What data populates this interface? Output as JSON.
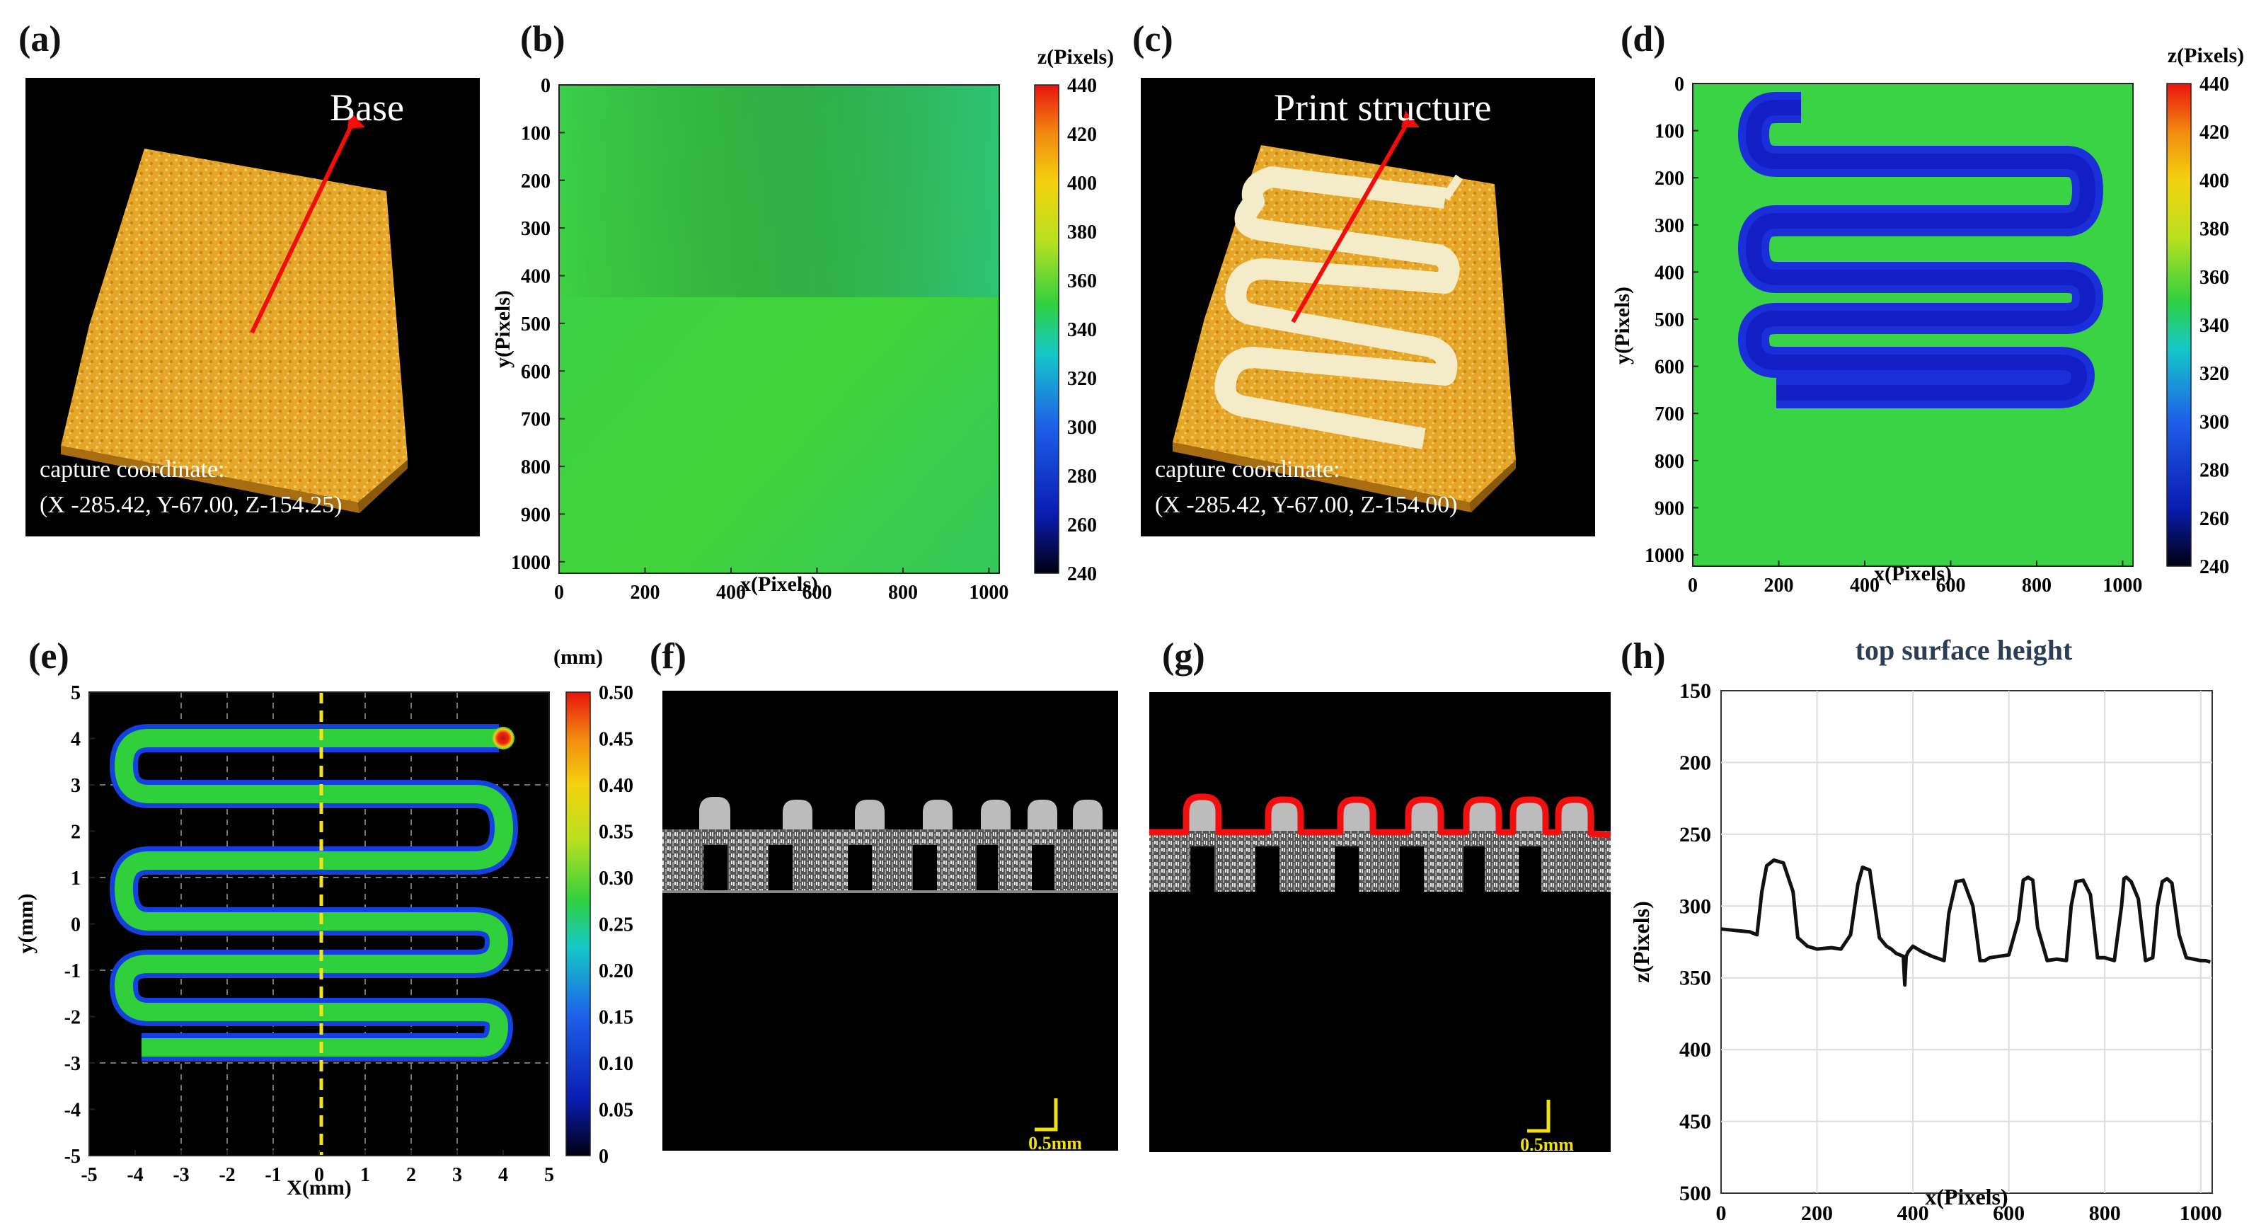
{
  "panel_labels": [
    "(a)",
    "(b)",
    "(c)",
    "(d)",
    "(e)",
    "(f)",
    "(g)",
    "(h)"
  ],
  "panel_a": {
    "arrow_label": "Base",
    "coord_title": "capture coordinate:",
    "coord_value": "(X -285.42, Y-67.00, Z-154.25)"
  },
  "panel_b": {
    "cbar_title": "z(Pixels)",
    "cbar_ticks": [
      "440",
      "420",
      "400",
      "380",
      "360",
      "340",
      "320",
      "300",
      "280",
      "260",
      "240"
    ],
    "x_ticks": [
      "0",
      "200",
      "400",
      "600",
      "800",
      "1000"
    ],
    "y_ticks": [
      "0",
      "100",
      "200",
      "300",
      "400",
      "500",
      "600",
      "700",
      "800",
      "900",
      "1000"
    ],
    "xlabel": "x(Pixels)",
    "ylabel": "y(Pixels)"
  },
  "panel_c": {
    "arrow_label": "Print structure",
    "coord_title": "capture coordinate:",
    "coord_value": "(X -285.42, Y-67.00, Z-154.00)"
  },
  "panel_d": {
    "cbar_title": "z(Pixels)",
    "cbar_ticks": [
      "440",
      "420",
      "400",
      "380",
      "360",
      "340",
      "320",
      "300",
      "280",
      "260",
      "240"
    ],
    "x_ticks": [
      "0",
      "200",
      "400",
      "600",
      "800",
      "1000"
    ],
    "y_ticks": [
      "0",
      "100",
      "200",
      "300",
      "400",
      "500",
      "600",
      "700",
      "800",
      "900",
      "1000"
    ],
    "xlabel": "x(Pixels)",
    "ylabel": "y(Pixels)"
  },
  "panel_e": {
    "cbar_title": "(mm)",
    "cbar_ticks": [
      "0.50",
      "0.45",
      "0.40",
      "0.35",
      "0.30",
      "0.25",
      "0.20",
      "0.15",
      "0.10",
      "0.05",
      "0"
    ],
    "x_ticks": [
      "-5",
      "-4",
      "-3",
      "-2",
      "-1",
      "0",
      "1",
      "2",
      "3",
      "4",
      "5"
    ],
    "y_ticks": [
      "5",
      "4",
      "3",
      "2",
      "1",
      "0",
      "-1",
      "-2",
      "-3",
      "-4",
      "-5"
    ],
    "xlabel": "X(mm)",
    "ylabel": "y(mm)"
  },
  "panel_f": {
    "scale_label": "0.5mm"
  },
  "panel_g": {
    "scale_label": "0.5mm"
  },
  "chart_data": {
    "type": "line",
    "title": "top surface height",
    "xlabel": "x(Pixels)",
    "ylabel": "z(Pixels)",
    "xlim": [
      0,
      1024
    ],
    "ylim": [
      500,
      150
    ],
    "x_ticks": [
      "0",
      "200",
      "400",
      "600",
      "800",
      "1000"
    ],
    "y_ticks": [
      "150",
      "200",
      "250",
      "300",
      "350",
      "400",
      "450",
      "500"
    ],
    "grid": true,
    "x": [
      0,
      30,
      60,
      75,
      85,
      95,
      110,
      130,
      150,
      160,
      170,
      180,
      200,
      230,
      250,
      270,
      285,
      295,
      310,
      330,
      345,
      355,
      365,
      380,
      383,
      386,
      390,
      400,
      420,
      440,
      465,
      475,
      490,
      505,
      525,
      540,
      550,
      560,
      580,
      600,
      620,
      630,
      640,
      650,
      660,
      680,
      700,
      720,
      730,
      740,
      755,
      770,
      785,
      800,
      820,
      835,
      840,
      845,
      855,
      870,
      885,
      900,
      910,
      920,
      930,
      940,
      955,
      970,
      985,
      1000,
      1010,
      1020
    ],
    "y": [
      316,
      317,
      318,
      320,
      290,
      272,
      268,
      270,
      290,
      322,
      325,
      328,
      330,
      329,
      330,
      320,
      285,
      273,
      275,
      322,
      328,
      330,
      333,
      335,
      355,
      335,
      332,
      328,
      332,
      335,
      338,
      305,
      283,
      282,
      300,
      338,
      338,
      336,
      335,
      334,
      310,
      282,
      280,
      282,
      315,
      338,
      337,
      338,
      300,
      283,
      282,
      292,
      336,
      336,
      338,
      300,
      281,
      280,
      283,
      295,
      338,
      336,
      300,
      283,
      281,
      284,
      320,
      336,
      337,
      338,
      338,
      339
    ]
  }
}
